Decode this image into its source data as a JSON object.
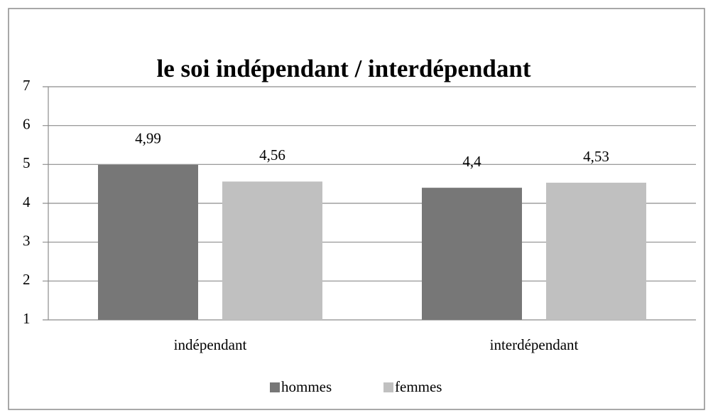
{
  "chart_data": {
    "type": "bar",
    "title": "le soi indépendant / interdépendant",
    "categories": [
      "indépendant",
      "interdépendant"
    ],
    "series": [
      {
        "name": "hommes",
        "color": "#777777",
        "values": [
          4.99,
          4.4
        ],
        "value_labels": [
          "4,99",
          "4,4"
        ]
      },
      {
        "name": "femmes",
        "color": "#c0c0c0",
        "values": [
          4.56,
          4.53
        ],
        "value_labels": [
          "4,56",
          "4,53"
        ]
      }
    ],
    "ylim": [
      1,
      7
    ],
    "yticks": [
      1,
      2,
      3,
      4,
      5,
      6,
      7
    ],
    "grid": true,
    "legend": "bottom"
  }
}
